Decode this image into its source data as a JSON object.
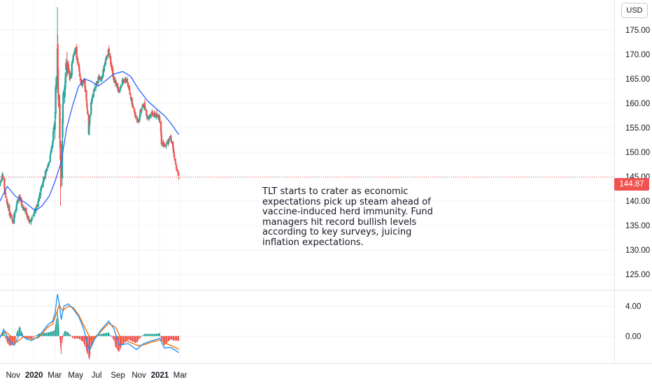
{
  "currency_button": "USD",
  "annotation": "TLT starts to crater as economic expectations pick up steam ahead of vaccine-induced herd immunity. Fund managers hit record bullish levels according to key surveys, juicing inflation expectations.",
  "last_price_label": "144.87",
  "colors": {
    "up": "#26a69a",
    "down": "#ef5350",
    "moving_average": "#2962ff",
    "macd_line": "#2196f3",
    "signal_line": "#ff6d00",
    "last_price": "#ef5350",
    "grid": "#f0f3fa",
    "axis_text": "#131722"
  },
  "chart_data": [
    {
      "type": "candlestick",
      "y_ticks": [
        "125.00",
        "130.00",
        "135.00",
        "140.00",
        "145.00",
        "150.00",
        "155.00",
        "160.00",
        "165.00",
        "170.00",
        "175.00"
      ],
      "x_ticks": [
        "Nov",
        "2020",
        "Mar",
        "May",
        "Jul",
        "Sep",
        "Nov",
        "2021",
        "Mar"
      ],
      "ylim": [
        122,
        180
      ],
      "last_price": 144.87,
      "price_anchors": [
        [
          "2019-09-24",
          143.5
        ],
        [
          "2019-10-01",
          145.8
        ],
        [
          "2019-10-08",
          142.0
        ],
        [
          "2019-10-15",
          139.5
        ],
        [
          "2019-10-22",
          137.5
        ],
        [
          "2019-11-01",
          135.8
        ],
        [
          "2019-11-08",
          138.5
        ],
        [
          "2019-11-18",
          141.0
        ],
        [
          "2019-11-28",
          139.0
        ],
        [
          "2019-12-10",
          137.5
        ],
        [
          "2019-12-20",
          135.5
        ],
        [
          "2020-01-05",
          138.0
        ],
        [
          "2020-01-15",
          140.5
        ],
        [
          "2020-01-24",
          143.5
        ],
        [
          "2020-02-04",
          146.0
        ],
        [
          "2020-02-14",
          148.0
        ],
        [
          "2020-02-24",
          152.0
        ],
        [
          "2020-03-02",
          158.0
        ],
        [
          "2020-03-09",
          171.0
        ],
        [
          "2020-03-12",
          160.0
        ],
        [
          "2020-03-18",
          150.0
        ],
        [
          "2020-03-20",
          144.0
        ],
        [
          "2020-03-26",
          162.0
        ],
        [
          "2020-04-05",
          168.0
        ],
        [
          "2020-04-15",
          165.0
        ],
        [
          "2020-04-24",
          170.0
        ],
        [
          "2020-05-01",
          171.0
        ],
        [
          "2020-05-10",
          167.0
        ],
        [
          "2020-05-18",
          163.5
        ],
        [
          "2020-05-26",
          165.0
        ],
        [
          "2020-06-05",
          158.0
        ],
        [
          "2020-06-08",
          154.0
        ],
        [
          "2020-06-15",
          160.0
        ],
        [
          "2020-06-25",
          163.0
        ],
        [
          "2020-07-05",
          165.0
        ],
        [
          "2020-07-15",
          165.0
        ],
        [
          "2020-07-25",
          168.0
        ],
        [
          "2020-08-05",
          171.0
        ],
        [
          "2020-08-12",
          168.0
        ],
        [
          "2020-08-20",
          165.0
        ],
        [
          "2020-08-28",
          164.0
        ],
        [
          "2020-09-04",
          162.0
        ],
        [
          "2020-09-15",
          165.0
        ],
        [
          "2020-09-28",
          164.5
        ],
        [
          "2020-10-08",
          161.0
        ],
        [
          "2020-10-20",
          158.0
        ],
        [
          "2020-10-30",
          156.0
        ],
        [
          "2020-11-06",
          158.5
        ],
        [
          "2020-11-16",
          160.0
        ],
        [
          "2020-11-26",
          157.0
        ],
        [
          "2020-12-08",
          158.0
        ],
        [
          "2020-12-20",
          157.5
        ],
        [
          "2021-01-01",
          157.0
        ],
        [
          "2021-01-06",
          152.0
        ],
        [
          "2021-01-14",
          151.5
        ],
        [
          "2021-01-24",
          152.0
        ],
        [
          "2021-02-01",
          153.0
        ],
        [
          "2021-02-09",
          150.5
        ],
        [
          "2021-02-16",
          147.5
        ],
        [
          "2021-02-25",
          144.87
        ]
      ],
      "wick_extremes": [
        {
          "date": "2020-03-09",
          "high": 179.7
        },
        {
          "date": "2020-03-18",
          "low": 139.0
        }
      ],
      "moving_average": [
        [
          "2019-09-24",
          140.0
        ],
        [
          "2019-10-15",
          143.0
        ],
        [
          "2019-11-08",
          141.0
        ],
        [
          "2019-12-10",
          139.5
        ],
        [
          "2020-01-05",
          138.0
        ],
        [
          "2020-01-24",
          139.0
        ],
        [
          "2020-02-14",
          141.0
        ],
        [
          "2020-03-02",
          144.0
        ],
        [
          "2020-03-20",
          148.0
        ],
        [
          "2020-04-05",
          155.0
        ],
        [
          "2020-04-24",
          160.0
        ],
        [
          "2020-05-10",
          163.5
        ],
        [
          "2020-05-26",
          165.0
        ],
        [
          "2020-06-15",
          164.5
        ],
        [
          "2020-07-05",
          163.5
        ],
        [
          "2020-07-25",
          164.5
        ],
        [
          "2020-08-20",
          166.0
        ],
        [
          "2020-09-15",
          166.5
        ],
        [
          "2020-10-08",
          165.5
        ],
        [
          "2020-10-30",
          163.0
        ],
        [
          "2020-11-26",
          160.5
        ],
        [
          "2020-12-20",
          159.0
        ],
        [
          "2021-01-14",
          157.5
        ],
        [
          "2021-02-01",
          156.0
        ],
        [
          "2021-02-25",
          153.6
        ]
      ]
    },
    {
      "type": "line",
      "indicator": "macd",
      "y_ticks": [
        "4.00",
        "0.00"
      ],
      "ylim": [
        -3.6,
        6.0
      ],
      "macd": [
        [
          "2019-09-24",
          -0.2
        ],
        [
          "2019-10-05",
          0.9
        ],
        [
          "2019-10-20",
          -0.6
        ],
        [
          "2019-11-05",
          -1.2
        ],
        [
          "2019-11-20",
          0.3
        ],
        [
          "2019-12-10",
          -0.4
        ],
        [
          "2019-12-25",
          -0.6
        ],
        [
          "2020-01-15",
          0.0
        ],
        [
          "2020-02-10",
          1.5
        ],
        [
          "2020-02-24",
          2.0
        ],
        [
          "2020-03-02",
          3.0
        ],
        [
          "2020-03-09",
          5.6
        ],
        [
          "2020-03-14",
          4.5
        ],
        [
          "2020-03-20",
          2.2
        ],
        [
          "2020-03-28",
          4.0
        ],
        [
          "2020-04-10",
          4.3
        ],
        [
          "2020-04-24",
          3.6
        ],
        [
          "2020-05-10",
          2.6
        ],
        [
          "2020-05-24",
          1.0
        ],
        [
          "2020-06-10",
          -2.0
        ],
        [
          "2020-06-24",
          -0.5
        ],
        [
          "2020-07-10",
          0.6
        ],
        [
          "2020-08-05",
          2.0
        ],
        [
          "2020-08-20",
          1.0
        ],
        [
          "2020-09-05",
          -1.2
        ],
        [
          "2020-10-01",
          -1.0
        ],
        [
          "2020-10-25",
          -1.8
        ],
        [
          "2020-11-15",
          -1.0
        ],
        [
          "2020-12-10",
          -0.6
        ],
        [
          "2021-01-01",
          -0.3
        ],
        [
          "2021-01-14",
          -1.6
        ],
        [
          "2021-02-01",
          -1.5
        ],
        [
          "2021-02-25",
          -2.2
        ]
      ],
      "signal": [
        [
          "2019-09-24",
          0.0
        ],
        [
          "2019-10-10",
          0.6
        ],
        [
          "2019-10-25",
          0.0
        ],
        [
          "2019-11-12",
          -0.8
        ],
        [
          "2019-12-01",
          -0.1
        ],
        [
          "2019-12-25",
          -0.4
        ],
        [
          "2020-01-15",
          -0.2
        ],
        [
          "2020-02-10",
          1.2
        ],
        [
          "2020-02-24",
          1.6
        ],
        [
          "2020-03-02",
          2.5
        ],
        [
          "2020-03-14",
          4.1
        ],
        [
          "2020-03-24",
          3.4
        ],
        [
          "2020-04-10",
          4.0
        ],
        [
          "2020-04-24",
          3.8
        ],
        [
          "2020-05-10",
          2.8
        ],
        [
          "2020-05-24",
          1.5
        ],
        [
          "2020-06-15",
          -0.5
        ],
        [
          "2020-07-05",
          0.2
        ],
        [
          "2020-08-05",
          1.7
        ],
        [
          "2020-08-25",
          1.2
        ],
        [
          "2020-09-10",
          -0.3
        ],
        [
          "2020-10-05",
          -0.8
        ],
        [
          "2020-10-30",
          -1.3
        ],
        [
          "2020-11-20",
          -1.1
        ],
        [
          "2020-12-15",
          -0.7
        ],
        [
          "2021-01-05",
          -0.5
        ],
        [
          "2021-01-20",
          -1.0
        ],
        [
          "2021-02-10",
          -1.4
        ],
        [
          "2021-02-25",
          -1.8
        ]
      ]
    }
  ]
}
